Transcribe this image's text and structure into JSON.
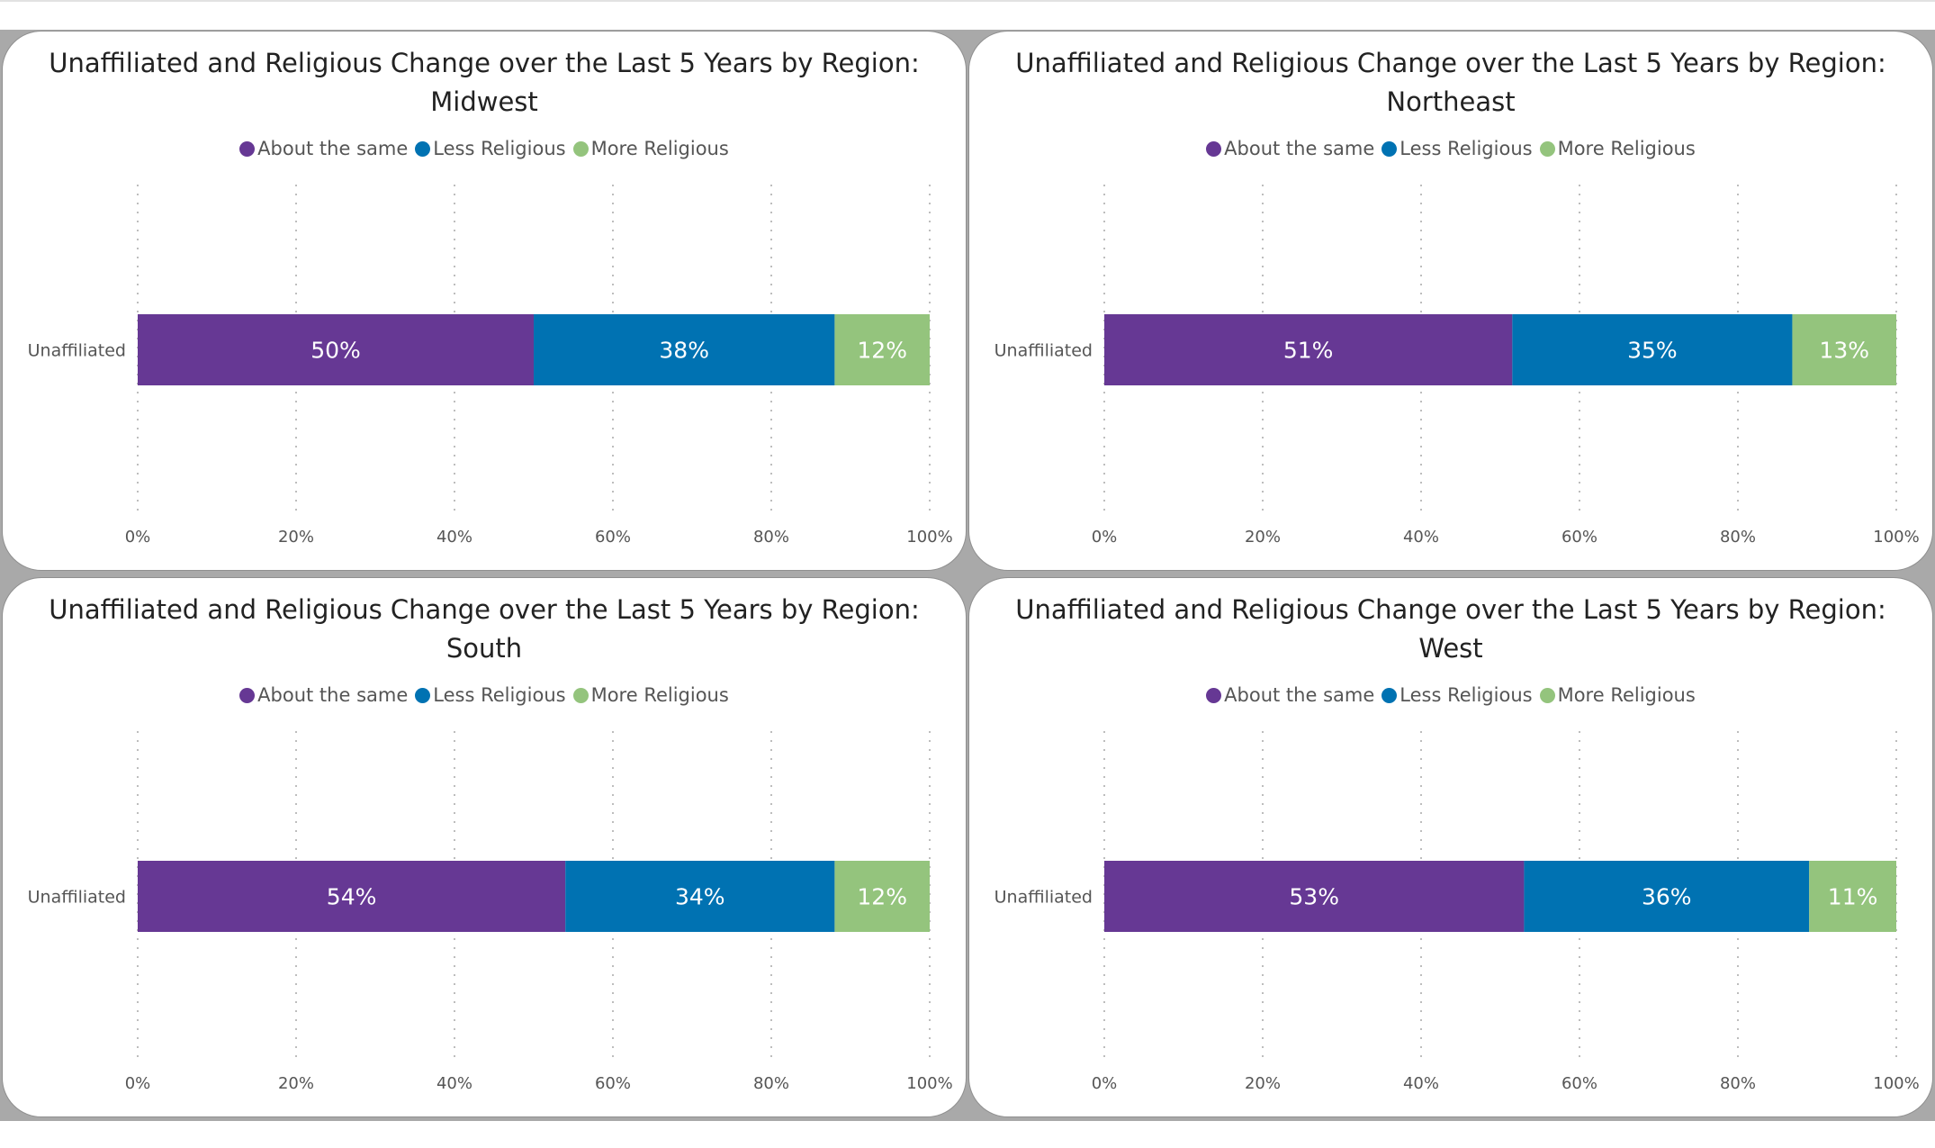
{
  "chart_data": [
    {
      "type": "bar",
      "orientation": "horizontal",
      "stacked": "100%",
      "title": "Unaffiliated and Religious Change over the Last 5 Years by Region: Midwest",
      "categories": [
        "Unaffiliated"
      ],
      "series": [
        {
          "name": "About the same",
          "values": [
            50
          ],
          "label": "50%"
        },
        {
          "name": "Less Religious",
          "values": [
            38
          ],
          "label": "38%"
        },
        {
          "name": "More Religious",
          "values": [
            12
          ],
          "label": "12%"
        }
      ],
      "xticks": [
        "0%",
        "20%",
        "40%",
        "60%",
        "80%",
        "100%"
      ],
      "xlim": [
        0,
        100
      ],
      "legend": "top-center",
      "grid": "vertical dotted"
    },
    {
      "type": "bar",
      "orientation": "horizontal",
      "stacked": "100%",
      "title": "Unaffiliated and Religious Change over the Last 5 Years by Region: Northeast",
      "categories": [
        "Unaffiliated"
      ],
      "series": [
        {
          "name": "About the same",
          "values": [
            51
          ],
          "label": "51%"
        },
        {
          "name": "Less Religious",
          "values": [
            35
          ],
          "label": "35%"
        },
        {
          "name": "More Religious",
          "values": [
            13
          ],
          "label": "13%"
        }
      ],
      "xticks": [
        "0%",
        "20%",
        "40%",
        "60%",
        "80%",
        "100%"
      ],
      "xlim": [
        0,
        100
      ],
      "legend": "top-center",
      "grid": "vertical dotted"
    },
    {
      "type": "bar",
      "orientation": "horizontal",
      "stacked": "100%",
      "title": "Unaffiliated and Religious Change over the Last 5 Years by Region: South",
      "categories": [
        "Unaffiliated"
      ],
      "series": [
        {
          "name": "About the same",
          "values": [
            54
          ],
          "label": "54%"
        },
        {
          "name": "Less Religious",
          "values": [
            34
          ],
          "label": "34%"
        },
        {
          "name": "More Religious",
          "values": [
            12
          ],
          "label": "12%"
        }
      ],
      "xticks": [
        "0%",
        "20%",
        "40%",
        "60%",
        "80%",
        "100%"
      ],
      "xlim": [
        0,
        100
      ],
      "legend": "top-center",
      "grid": "vertical dotted"
    },
    {
      "type": "bar",
      "orientation": "horizontal",
      "stacked": "100%",
      "title": "Unaffiliated and Religious Change over the Last 5 Years by Region: West",
      "categories": [
        "Unaffiliated"
      ],
      "series": [
        {
          "name": "About the same",
          "values": [
            53
          ],
          "label": "53%"
        },
        {
          "name": "Less Religious",
          "values": [
            36
          ],
          "label": "36%"
        },
        {
          "name": "More Religious",
          "values": [
            11
          ],
          "label": "11%"
        }
      ],
      "xticks": [
        "0%",
        "20%",
        "40%",
        "60%",
        "80%",
        "100%"
      ],
      "xlim": [
        0,
        100
      ],
      "legend": "top-center",
      "grid": "vertical dotted"
    }
  ],
  "colors": {
    "About the same": "#663894",
    "Less Religious": "#0072b2",
    "More Religious": "#94c47d"
  }
}
